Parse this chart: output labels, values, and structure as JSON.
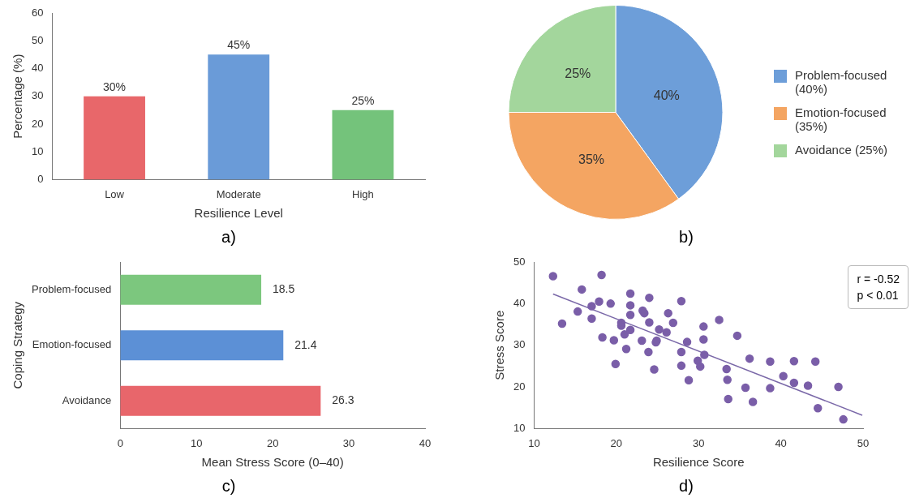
{
  "chart_data": [
    {
      "type": "bar",
      "xlabel": "Resilience Level",
      "ylabel": "Percentage (%)",
      "categories": [
        "Low",
        "Moderate",
        "High"
      ],
      "values": [
        30,
        45,
        25
      ],
      "colors": [
        "#e8676a",
        "#6a9bd8",
        "#74c37b"
      ],
      "value_labels": [
        "30%",
        "45%",
        "25%"
      ],
      "ylim": [
        0,
        60
      ],
      "yticks": [
        0,
        10,
        20,
        30,
        40,
        50,
        60
      ],
      "annotations": [
        "a)"
      ]
    },
    {
      "type": "pie",
      "categories": [
        "Problem-focused (40%)",
        "Emotion-focused (35%)",
        "Avoidance (25%)"
      ],
      "values": [
        40,
        35,
        25
      ],
      "colors": [
        "#6d9ed9",
        "#f4a562",
        "#a3d69c"
      ],
      "value_labels": [
        "40%",
        "35%",
        "25%"
      ],
      "legend": "right",
      "annotations": [
        "b)"
      ]
    },
    {
      "type": "bar",
      "orientation": "horizontal",
      "xlabel": "Mean Stress Score (0–40)",
      "ylabel": "Coping Strategy",
      "categories": [
        "Problem-focused",
        "Emotion-focused",
        "Avoidance"
      ],
      "values": [
        18.5,
        21.4,
        26.3
      ],
      "colors": [
        "#7cc77e",
        "#5c90d6",
        "#e8666b"
      ],
      "data_labels": true,
      "xlim": [
        0,
        40
      ],
      "xticks": [
        0,
        10,
        20,
        30,
        40
      ],
      "annotations": [
        "c)"
      ]
    },
    {
      "type": "scatter",
      "xlabel": "Resilience Score",
      "ylabel": "Stress Score",
      "xlim": [
        10,
        50
      ],
      "xticks": [
        10,
        20,
        30,
        40,
        50
      ],
      "ylim": [
        10,
        50
      ],
      "yticks": [
        10,
        20,
        30,
        40,
        50
      ],
      "marker": "circle",
      "annotations": [
        "r = -0.52",
        "p < 0.01",
        "d)"
      ],
      "series": [
        {
          "color": "#7a5ea8",
          "x": [
            12.3,
            13.4,
            15.3,
            15.8,
            17.0,
            17.0,
            17.9,
            18.2,
            18.3,
            19.3,
            19.7,
            19.9,
            20.6,
            20.6,
            21.0,
            21.2,
            21.7,
            21.7,
            21.7,
            21.7,
            23.1,
            23.2,
            23.4,
            23.9,
            24.0,
            24.0,
            24.6,
            24.8,
            24.9,
            25.2,
            26.1,
            26.3,
            26.9,
            27.9,
            27.9,
            27.9,
            28.6,
            28.8,
            29.9,
            30.2,
            30.6,
            30.6,
            30.7,
            32.5,
            33.4,
            33.5,
            33.6,
            34.7,
            35.7,
            36.2,
            36.6,
            38.7,
            38.7,
            40.3,
            41.6,
            41.6,
            43.3,
            44.2,
            44.5,
            47.0,
            47.6
          ],
          "values": [
            46.6,
            35.2,
            38.1,
            43.4,
            39.4,
            36.4,
            40.5,
            46.9,
            31.9,
            40.0,
            31.2,
            25.5,
            35.4,
            34.7,
            32.6,
            29.1,
            42.4,
            39.6,
            37.3,
            33.7,
            31.1,
            38.3,
            37.7,
            28.4,
            41.4,
            35.5,
            24.2,
            30.7,
            31.1,
            33.8,
            33.1,
            37.7,
            35.4,
            40.6,
            28.4,
            25.1,
            30.8,
            21.6,
            26.3,
            24.9,
            34.5,
            31.4,
            27.7,
            36.1,
            24.3,
            21.7,
            17.1,
            32.3,
            19.8,
            26.8,
            16.4,
            26.1,
            19.7,
            22.6,
            26.2,
            21.0,
            20.3,
            26.1,
            14.9,
            20.0,
            12.2
          ]
        },
        {
          "type": "line",
          "color": "#7a68a8",
          "x": [
            12.3,
            49.9
          ],
          "values": [
            42.3,
            13.2
          ],
          "marker": "none"
        }
      ]
    }
  ]
}
